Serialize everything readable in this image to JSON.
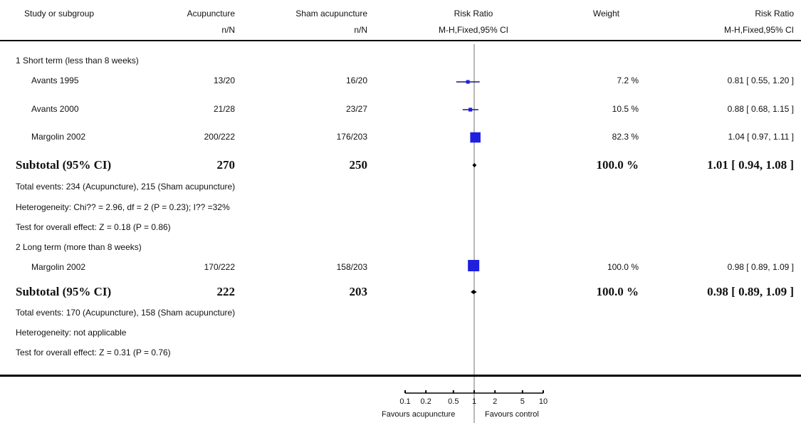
{
  "header": {
    "study_col": "Study or subgroup",
    "exp_col": "Acupuncture",
    "exp_sub": "n/N",
    "ctrl_col": "Sham acupuncture",
    "ctrl_sub": "n/N",
    "plot_col": "Risk Ratio",
    "plot_sub": "M-H,Fixed,95% CI",
    "weight_col": "Weight",
    "rr_col": "Risk Ratio",
    "rr_sub": "M-H,Fixed,95% CI"
  },
  "groups": [
    {
      "title": "1 Short term (less than 8 weeks)",
      "rows": [
        {
          "study": "Avants 1995",
          "exp": "13/20",
          "ctrl": "16/20",
          "weight": "7.2 %",
          "rr": "0.81 [ 0.55, 1.20 ]"
        },
        {
          "study": "Avants 2000",
          "exp": "21/28",
          "ctrl": "23/27",
          "weight": "10.5 %",
          "rr": "0.88 [ 0.68, 1.15 ]"
        },
        {
          "study": "Margolin 2002",
          "exp": "200/222",
          "ctrl": "176/203",
          "weight": "82.3 %",
          "rr": "1.04 [ 0.97, 1.11 ]"
        }
      ],
      "subtotal": {
        "label": "Subtotal (95% CI)",
        "exp": "270",
        "ctrl": "250",
        "weight": "100.0 %",
        "rr": "1.01 [ 0.94, 1.08 ]"
      },
      "notes": [
        "Total events: 234 (Acupuncture), 215 (Sham acupuncture)",
        "Heterogeneity: Chi?? = 2.96, df = 2 (P = 0.23); I?? =32%",
        "Test for overall effect: Z = 0.18 (P = 0.86)"
      ]
    },
    {
      "title": "2 Long term (more than 8 weeks)",
      "rows": [
        {
          "study": "Margolin 2002",
          "exp": "170/222",
          "ctrl": "158/203",
          "weight": "100.0 %",
          "rr": "0.98 [ 0.89, 1.09 ]"
        }
      ],
      "subtotal": {
        "label": "Subtotal (95% CI)",
        "exp": "222",
        "ctrl": "203",
        "weight": "100.0 %",
        "rr": "0.98 [ 0.89, 1.09 ]"
      },
      "notes": [
        "Total events: 170 (Acupuncture), 158 (Sham acupuncture)",
        "Heterogeneity: not applicable",
        "Test for overall effect: Z = 0.31 (P = 0.76)"
      ]
    }
  ],
  "axis": {
    "ticks": [
      "0.1",
      "0.2",
      "0.5",
      "1",
      "2",
      "5",
      "10"
    ],
    "favours_left": "Favours acupuncture",
    "favours_right": "Favours control"
  },
  "chart_data": {
    "type": "forest",
    "scale": "log",
    "xlim": [
      0.1,
      10
    ],
    "xticks": [
      0.1,
      0.2,
      0.5,
      1,
      2,
      5,
      10
    ],
    "null_line": 1,
    "studies": [
      {
        "group": 1,
        "name": "Avants 1995",
        "rr": 0.81,
        "lo": 0.55,
        "hi": 1.2,
        "weight": 7.2
      },
      {
        "group": 1,
        "name": "Avants 2000",
        "rr": 0.88,
        "lo": 0.68,
        "hi": 1.15,
        "weight": 10.5
      },
      {
        "group": 1,
        "name": "Margolin 2002",
        "rr": 1.04,
        "lo": 0.97,
        "hi": 1.11,
        "weight": 82.3
      },
      {
        "group": 2,
        "name": "Margolin 2002",
        "rr": 0.98,
        "lo": 0.89,
        "hi": 1.09,
        "weight": 100.0
      }
    ],
    "subtotals": [
      {
        "group": 1,
        "rr": 1.01,
        "lo": 0.94,
        "hi": 1.08
      },
      {
        "group": 2,
        "rr": 0.98,
        "lo": 0.89,
        "hi": 1.09
      }
    ],
    "colors": {
      "marker": "#1f1fe0",
      "line": "#1a1a6e",
      "null_line": "#b8b8b8",
      "text": "#111111"
    }
  }
}
